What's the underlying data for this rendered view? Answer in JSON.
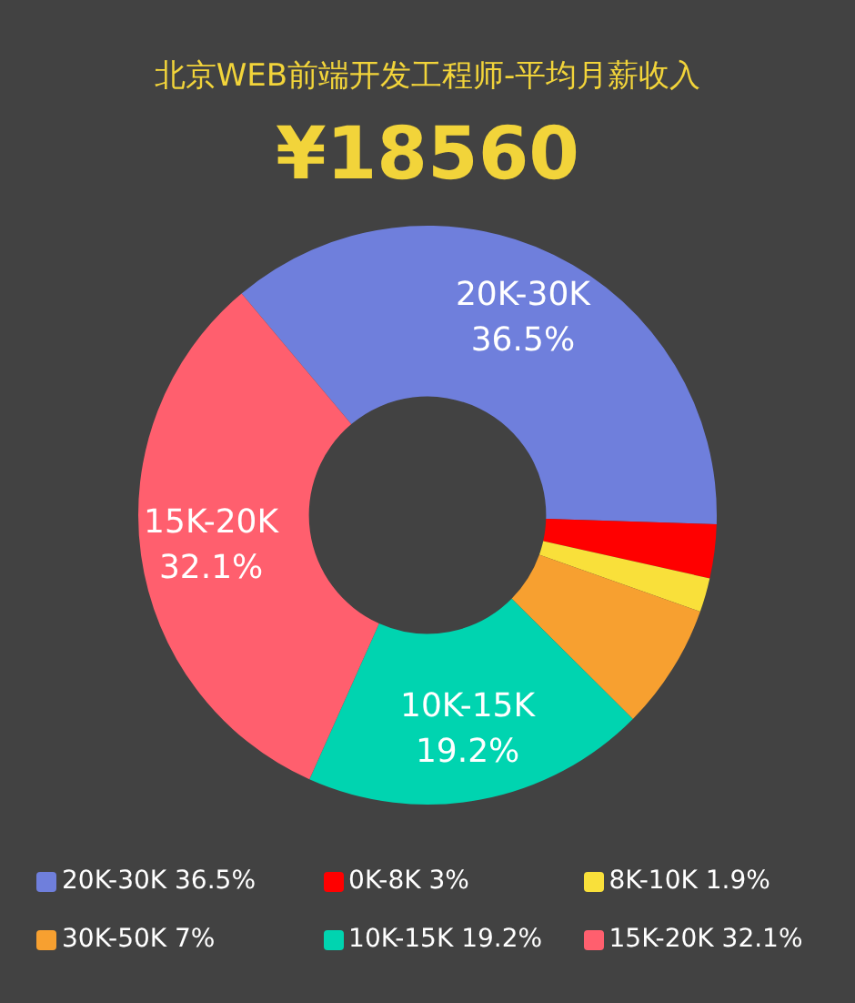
{
  "chart_data": {
    "type": "donut",
    "title": "北京WEB前端开发工程师-平均月薪收入",
    "subtitle": "¥18560",
    "categories": [
      "20K-30K",
      "0K-8K",
      "8K-10K",
      "30K-50K",
      "10K-15K",
      "15K-20K"
    ],
    "values": [
      36.5,
      3,
      1.9,
      7,
      19.2,
      32.1
    ],
    "colors": [
      "#6f7fdc",
      "#ff0000",
      "#f9e03a",
      "#f7a030",
      "#00d4b0",
      "#ff5f6e"
    ],
    "value_labels": [
      "36.5%",
      "3%",
      "1.9%",
      "7%",
      "19.2%",
      "32.1%"
    ],
    "legend": "bottom"
  }
}
